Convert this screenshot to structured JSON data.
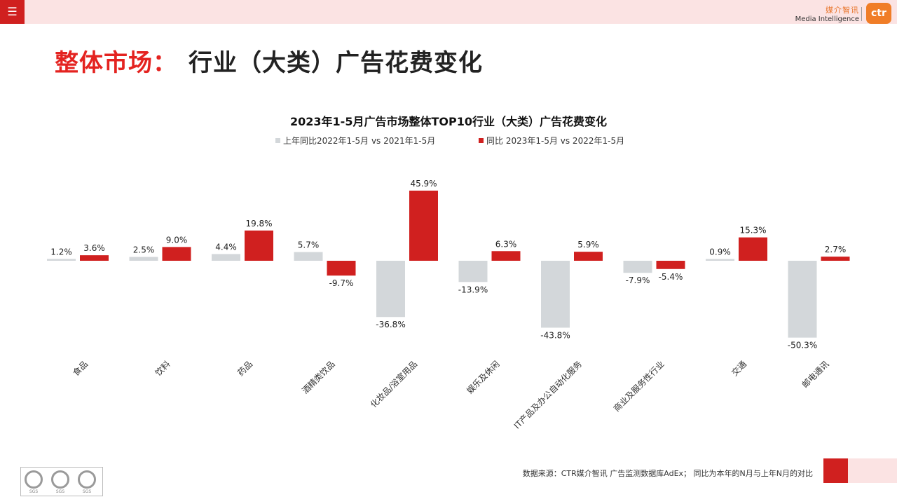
{
  "header": {
    "menu_icon": "☰",
    "brand_cn": "媒介智讯",
    "brand_en": "Media Intelligence",
    "logo_text": "ctr"
  },
  "page_title": {
    "part1": "整体市场：",
    "part2": "行业（大类）广告花费变化"
  },
  "colors": {
    "prev": "#d3d7da",
    "curr": "#d0201f",
    "accent": "#e42320"
  },
  "chart_data": {
    "type": "bar",
    "title": "2023年1-5月广告市场整体TOP10行业（大类）广告花费变化",
    "categories": [
      "食品",
      "饮料",
      "药品",
      "酒精类饮品",
      "化妆品/浴室用品",
      "娱乐及休闲",
      "IT产品及办公自动化服务",
      "商业及服务性行业",
      "交通",
      "邮电通讯"
    ],
    "series": [
      {
        "name": "上年同比2022年1-5月  vs  2021年1-5月",
        "color": "#d3d7da",
        "values": [
          1.2,
          2.5,
          4.4,
          5.7,
          -36.8,
          -13.9,
          -43.8,
          -7.9,
          0.9,
          -50.3
        ]
      },
      {
        "name": "同比 2023年1-5月  vs  2022年1-5月",
        "color": "#d0201f",
        "values": [
          3.6,
          9.0,
          19.8,
          -9.7,
          45.9,
          6.3,
          5.9,
          -5.4,
          15.3,
          2.7
        ]
      }
    ],
    "value_suffix": "%",
    "legend_position": "top",
    "grid": false
  },
  "footer": {
    "source": "数据来源：CTR媒介智讯 广告监测数据库AdEx；  同比为本年的N月与上年N月的对比",
    "cert_label": "SGS"
  }
}
